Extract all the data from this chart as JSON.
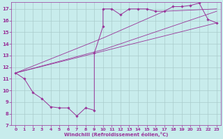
{
  "xlabel": "Windchill (Refroidissement éolien,°C)",
  "bg_color": "#c8ecec",
  "line_color": "#993399",
  "grid_color": "#aacccc",
  "xlim": [
    -0.5,
    23.5
  ],
  "ylim": [
    7,
    17.6
  ],
  "xticks": [
    0,
    1,
    2,
    3,
    4,
    5,
    6,
    7,
    8,
    9,
    10,
    11,
    12,
    13,
    14,
    15,
    16,
    17,
    18,
    19,
    20,
    21,
    22,
    23
  ],
  "yticks": [
    7,
    8,
    9,
    10,
    11,
    12,
    13,
    14,
    15,
    16,
    17
  ],
  "xy_data": [
    [
      0,
      11.5
    ],
    [
      1,
      11.0
    ],
    [
      2,
      9.8
    ],
    [
      3,
      9.3
    ],
    [
      3,
      8.7
    ],
    [
      4,
      8.6
    ],
    [
      4,
      9.0
    ],
    [
      5,
      8.6
    ],
    [
      5,
      8.5
    ],
    [
      6,
      8.5
    ],
    [
      7,
      7.8
    ],
    [
      8,
      8.5
    ],
    [
      9,
      8.3
    ],
    [
      9,
      13.2
    ],
    [
      10,
      15.5
    ],
    [
      10,
      17.0
    ],
    [
      11,
      17.0
    ],
    [
      12,
      16.5
    ],
    [
      13,
      17.0
    ],
    [
      13,
      17.0
    ],
    [
      14,
      17.0
    ],
    [
      15,
      17.0
    ],
    [
      16,
      16.8
    ],
    [
      16,
      16.5
    ],
    [
      17,
      16.8
    ],
    [
      18,
      17.2
    ],
    [
      19,
      17.2
    ],
    [
      20,
      17.3
    ],
    [
      21,
      17.5
    ],
    [
      21,
      17.4
    ],
    [
      22,
      16.1
    ],
    [
      23,
      15.8
    ]
  ],
  "main_curve_x": [
    0,
    1,
    2,
    3,
    4,
    5,
    6,
    7,
    8,
    9,
    9,
    10,
    10,
    11,
    12,
    13,
    14,
    15,
    16,
    17,
    18,
    19,
    20,
    21,
    22,
    23
  ],
  "main_curve_y": [
    11.5,
    11.0,
    9.8,
    9.3,
    8.6,
    8.5,
    8.5,
    7.8,
    8.5,
    8.3,
    13.2,
    15.5,
    17.0,
    17.0,
    16.5,
    17.0,
    17.0,
    17.0,
    16.8,
    16.8,
    17.2,
    17.2,
    17.3,
    17.5,
    16.1,
    15.8
  ],
  "line2_x": [
    0,
    23
  ],
  "line2_y": [
    11.5,
    15.8
  ],
  "line3_x": [
    0,
    10,
    23
  ],
  "line3_y": [
    11.5,
    13.5,
    16.8
  ],
  "line4_x": [
    0,
    10,
    17,
    23
  ],
  "line4_y": [
    11.5,
    14.5,
    16.8,
    17.0
  ]
}
